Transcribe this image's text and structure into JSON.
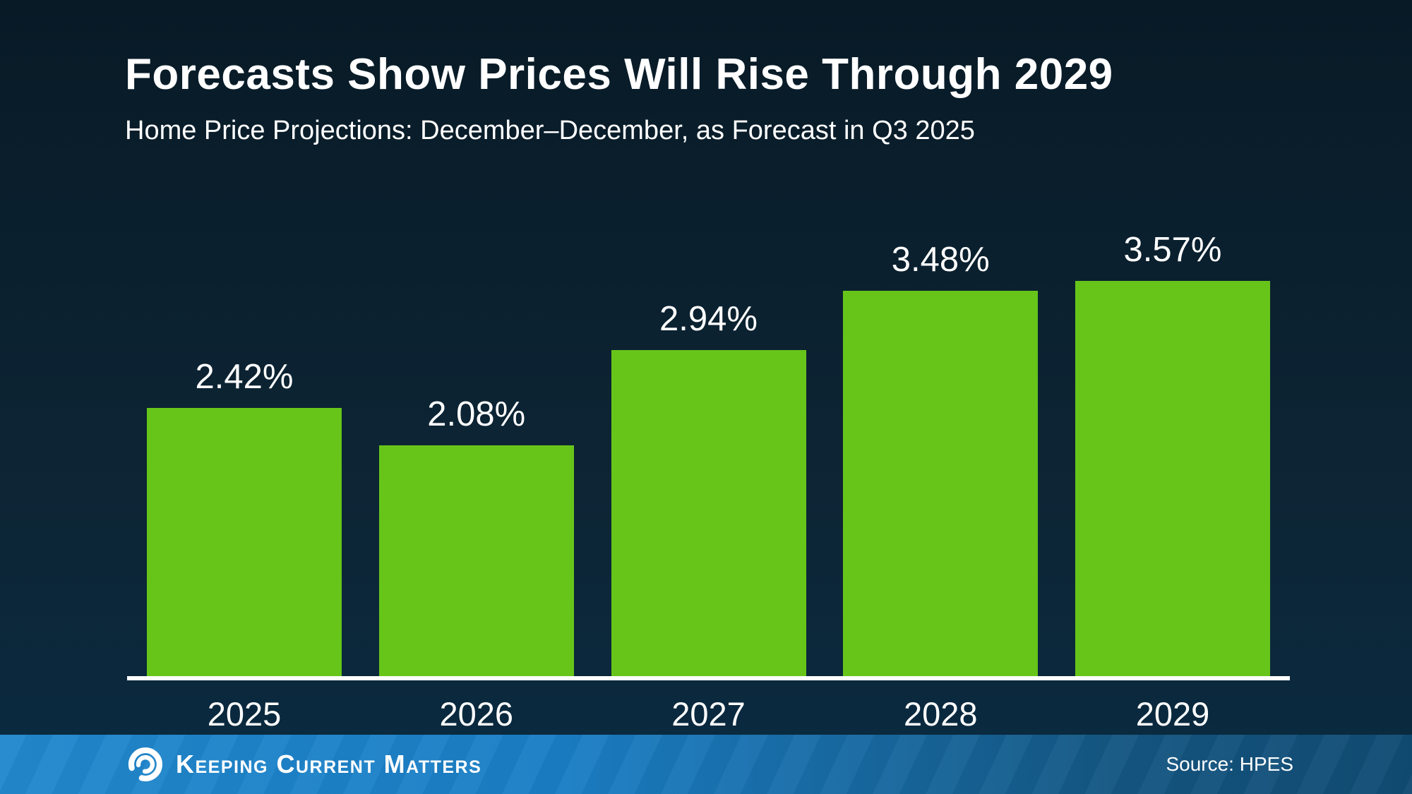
{
  "header": {
    "title": "Forecasts Show Prices Will Rise Through 2029",
    "subtitle": "Home Price Projections: December–December, as Forecast in Q3 2025"
  },
  "chart_data": {
    "type": "bar",
    "categories": [
      "2025",
      "2026",
      "2027",
      "2028",
      "2029"
    ],
    "values": [
      2.42,
      2.08,
      2.94,
      3.48,
      3.57
    ],
    "value_labels": [
      "2.42%",
      "2.08%",
      "2.94%",
      "3.48%",
      "3.57%"
    ],
    "title": "Forecasts Show Prices Will Rise Through 2029",
    "subtitle": "Home Price Projections: December–December, as Forecast in Q3 2025",
    "xlabel": "",
    "ylabel": "",
    "ylim": [
      0,
      4
    ],
    "grid": false,
    "legend": false,
    "bar_color": "#67c51a",
    "axis_line_color": "#ffffff",
    "label_color": "#ffffff"
  },
  "footer": {
    "brand": "Keeping Current Matters",
    "source": "Source: HPES"
  },
  "colors": {
    "background_top": "#081a26",
    "background_bottom": "#0a2a40",
    "bar_green": "#67c51a",
    "footer_blue_left": "#2188cd",
    "footer_blue_right": "#114b74",
    "text": "#ffffff"
  }
}
